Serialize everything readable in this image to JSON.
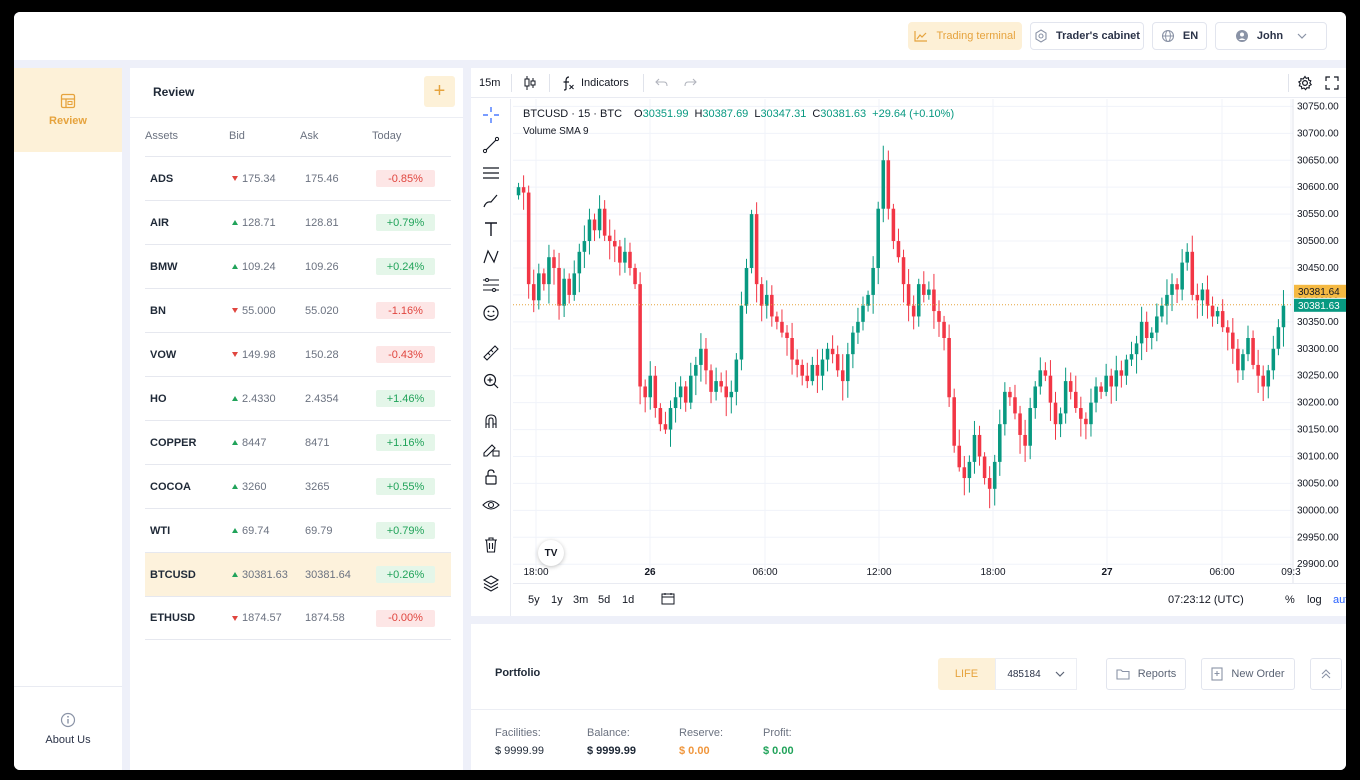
{
  "header": {
    "trading_terminal": "Trading terminal",
    "traders_cabinet": "Trader's cabinet",
    "language": "EN",
    "user": "John"
  },
  "sidebar": {
    "review_label": "Review",
    "about_label": "About Us"
  },
  "review": {
    "title": "Review",
    "add_label": "+",
    "columns": [
      "Assets",
      "Bid",
      "Ask",
      "Today"
    ],
    "rows": [
      {
        "asset": "ADS",
        "bid": "175.34",
        "ask": "175.46",
        "today": "-0.85%",
        "dir": "down"
      },
      {
        "asset": "AIR",
        "bid": "128.71",
        "ask": "128.81",
        "today": "+0.79%",
        "dir": "up"
      },
      {
        "asset": "BMW",
        "bid": "109.24",
        "ask": "109.26",
        "today": "+0.24%",
        "dir": "up"
      },
      {
        "asset": "BN",
        "bid": "55.000",
        "ask": "55.020",
        "today": "-1.16%",
        "dir": "down"
      },
      {
        "asset": "VOW",
        "bid": "149.98",
        "ask": "150.28",
        "today": "-0.43%",
        "dir": "down"
      },
      {
        "asset": "HO",
        "bid": "2.4330",
        "ask": "2.4354",
        "today": "+1.46%",
        "dir": "up"
      },
      {
        "asset": "COPPER",
        "bid": "8447",
        "ask": "8471",
        "today": "+1.16%",
        "dir": "up"
      },
      {
        "asset": "COCOA",
        "bid": "3260",
        "ask": "3265",
        "today": "+0.55%",
        "dir": "up"
      },
      {
        "asset": "WTI",
        "bid": "69.74",
        "ask": "69.79",
        "today": "+0.79%",
        "dir": "up"
      },
      {
        "asset": "BTCUSD",
        "bid": "30381.63",
        "ask": "30381.64",
        "today": "+0.26%",
        "dir": "up",
        "selected": true
      },
      {
        "asset": "ETHUSD",
        "bid": "1874.57",
        "ask": "1874.58",
        "today": "-0.00%",
        "dir": "down"
      }
    ]
  },
  "chart_toolbar": {
    "interval": "15m",
    "indicators": "Indicators"
  },
  "chart_legend": {
    "symbol": "BTCUSD · 15 · BTC",
    "open_label": "O",
    "open": "30351.99",
    "high_label": "H",
    "high": "30387.69",
    "low_label": "L",
    "low": "30347.31",
    "close_label": "C",
    "close": "30381.63",
    "change": "+29.64 (+0.10%)",
    "volume": "Volume SMA 9"
  },
  "chart_bottom": {
    "ranges": [
      "5y",
      "1y",
      "3m",
      "5d",
      "1d"
    ],
    "time": "07:23:12 (UTC)",
    "percent": "%",
    "log": "log",
    "auto": "auto"
  },
  "chart_data": {
    "type": "candlestick",
    "y_ticks": [
      "30750.00",
      "30700.00",
      "30650.00",
      "30600.00",
      "30550.00",
      "30500.00",
      "30450.00",
      "30400.00",
      "30350.00",
      "30300.00",
      "30250.00",
      "30200.00",
      "30150.00",
      "30100.00",
      "30050.00",
      "30000.00",
      "29950.00",
      "29900.00"
    ],
    "x_ticks": [
      "18:00",
      "26",
      "06:00",
      "12:00",
      "18:00",
      "27",
      "06:00",
      "09:3"
    ],
    "ask_label": "30381.64",
    "bid_label": "30381.63",
    "ylim": [
      29880,
      30760
    ],
    "closes": [
      30600,
      30590,
      30420,
      30390,
      30440,
      30420,
      30470,
      30450,
      30380,
      30430,
      30400,
      30440,
      30480,
      30500,
      30540,
      30520,
      30560,
      30510,
      30500,
      30490,
      30460,
      30480,
      30450,
      30420,
      30230,
      30210,
      30250,
      30190,
      30160,
      30150,
      30190,
      30210,
      30230,
      30200,
      30250,
      30270,
      30300,
      30260,
      30220,
      30240,
      30230,
      30210,
      30220,
      30280,
      30380,
      30450,
      30550,
      30420,
      30380,
      30400,
      30360,
      30350,
      30330,
      30320,
      30280,
      30270,
      30250,
      30240,
      30270,
      30250,
      30280,
      30300,
      30290,
      30260,
      30240,
      30290,
      30330,
      30350,
      30380,
      30400,
      30450,
      30560,
      30650,
      30560,
      30500,
      30470,
      30420,
      30380,
      30360,
      30420,
      30400,
      30410,
      30370,
      30350,
      30320,
      30210,
      30120,
      30080,
      30060,
      30090,
      30140,
      30100,
      30060,
      30040,
      30090,
      30160,
      30220,
      30210,
      30180,
      30140,
      30120,
      30190,
      30230,
      30260,
      30250,
      30200,
      30160,
      30180,
      30240,
      30220,
      30190,
      30170,
      30160,
      30200,
      30230,
      30220,
      30250,
      30230,
      30260,
      30250,
      30280,
      30290,
      30310,
      30350,
      30320,
      30330,
      30360,
      30380,
      30400,
      30420,
      30410,
      30460,
      30480,
      30400,
      30390,
      30410,
      30380,
      30360,
      30370,
      30340,
      30330,
      30300,
      30260,
      30290,
      30320,
      30270,
      30250,
      30230,
      30260,
      30300,
      30340,
      30380
    ]
  }
}
